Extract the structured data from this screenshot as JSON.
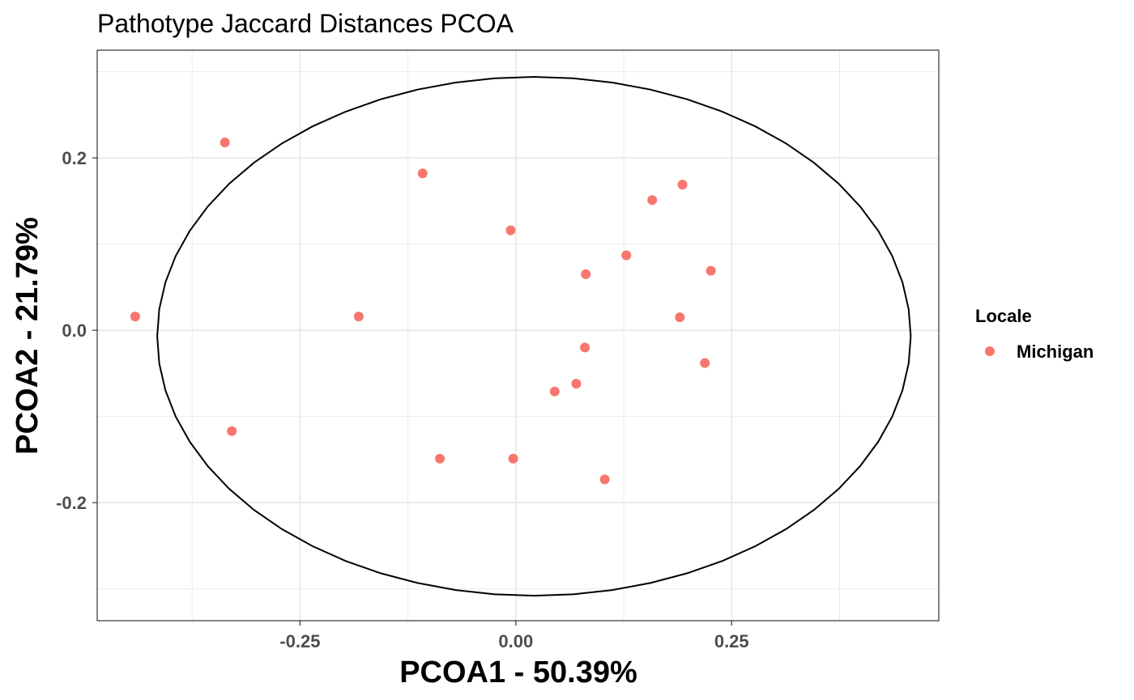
{
  "chart_data": {
    "type": "scatter",
    "title": "Pathotype Jaccard Distances PCOA",
    "xlabel": "PCOA1 - 50.39%",
    "ylabel": "PCOA2 - 21.79%",
    "xlim": [
      -0.485,
      0.49
    ],
    "ylim": [
      -0.337,
      0.325
    ],
    "x_major_ticks": [
      -0.25,
      0.0,
      0.25
    ],
    "x_tick_labels": [
      "-0.25",
      "0.00",
      "0.25"
    ],
    "x_minor_ticks": [
      -0.375,
      -0.125,
      0.125,
      0.375
    ],
    "y_major_ticks": [
      -0.2,
      0.0,
      0.2
    ],
    "y_tick_labels": [
      "-0.2",
      "0.0",
      "0.2"
    ],
    "y_minor_ticks": [
      -0.3,
      -0.1,
      0.1,
      0.3
    ],
    "grid": true,
    "legend": {
      "title": "Locale",
      "position": "right",
      "entries": [
        {
          "label": "Michigan",
          "color": "#F8766D"
        }
      ]
    },
    "series": [
      {
        "name": "Michigan",
        "color": "#F8766D",
        "points": [
          {
            "x": -0.441,
            "y": 0.016
          },
          {
            "x": -0.337,
            "y": 0.218
          },
          {
            "x": -0.329,
            "y": -0.117
          },
          {
            "x": -0.182,
            "y": 0.016
          },
          {
            "x": -0.108,
            "y": 0.182
          },
          {
            "x": -0.088,
            "y": -0.149
          },
          {
            "x": -0.006,
            "y": 0.116
          },
          {
            "x": -0.003,
            "y": -0.149
          },
          {
            "x": 0.045,
            "y": -0.071
          },
          {
            "x": 0.07,
            "y": -0.062
          },
          {
            "x": 0.08,
            "y": -0.02
          },
          {
            "x": 0.081,
            "y": 0.065
          },
          {
            "x": 0.103,
            "y": -0.173
          },
          {
            "x": 0.128,
            "y": 0.087
          },
          {
            "x": 0.158,
            "y": 0.151
          },
          {
            "x": 0.19,
            "y": 0.015
          },
          {
            "x": 0.193,
            "y": 0.169
          },
          {
            "x": 0.219,
            "y": -0.038
          },
          {
            "x": 0.226,
            "y": 0.069
          }
        ]
      }
    ],
    "ellipse": {
      "type": "confidence-ellipse",
      "center": {
        "x": 0.021,
        "y": -0.007
      },
      "semi_axis_x": 0.4365,
      "semi_axis_y": 0.301,
      "color": "#000000"
    }
  }
}
